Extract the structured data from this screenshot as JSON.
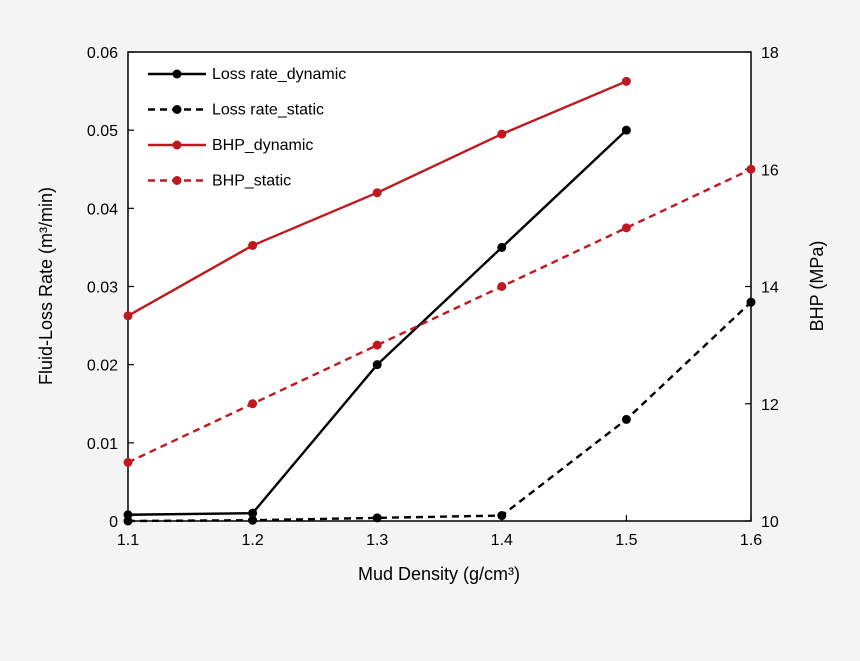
{
  "chart_data": {
    "type": "line",
    "x": [
      1.1,
      1.2,
      1.3,
      1.4,
      1.5,
      1.6
    ],
    "xlabel": "Mud Density (g/cm³)",
    "ylabel_left": "Fluid-Loss Rate (m³/min)",
    "ylabel_right": "BHP (MPa)",
    "xlim": [
      1.1,
      1.6
    ],
    "ylim_left": [
      0,
      0.06
    ],
    "ylim_right": [
      10,
      18
    ],
    "x_ticks": [
      "1.1",
      "1.2",
      "1.3",
      "1.4",
      "1.5",
      "1.6"
    ],
    "left_ticks": [
      "0",
      "0.01",
      "0.02",
      "0.03",
      "0.04",
      "0.05",
      "0.06"
    ],
    "right_ticks": [
      "10",
      "12",
      "14",
      "16",
      "18"
    ],
    "legend_position": "top-left",
    "series": [
      {
        "name": "Loss rate_dynamic",
        "axis": "left",
        "color": "#000000",
        "dashed": false,
        "x": [
          1.1,
          1.2,
          1.3,
          1.4,
          1.5
        ],
        "values": [
          0.0008,
          0.001,
          0.02,
          0.035,
          0.05
        ]
      },
      {
        "name": "Loss rate_static",
        "axis": "left",
        "color": "#000000",
        "dashed": true,
        "x": [
          1.1,
          1.2,
          1.3,
          1.4,
          1.5,
          1.6
        ],
        "values": [
          0,
          0.0001,
          0.0004,
          0.0007,
          0.013,
          0.028
        ]
      },
      {
        "name": "BHP_dynamic",
        "axis": "right",
        "color": "#c0181f",
        "dashed": false,
        "x": [
          1.1,
          1.2,
          1.3,
          1.4,
          1.5
        ],
        "values": [
          13.5,
          14.7,
          15.6,
          16.6,
          17.5
        ]
      },
      {
        "name": "BHP_static",
        "axis": "right",
        "color": "#c0181f",
        "dashed": true,
        "x": [
          1.1,
          1.2,
          1.3,
          1.4,
          1.5,
          1.6
        ],
        "values": [
          11.0,
          12.0,
          13.0,
          14.0,
          15.0,
          16.0
        ]
      }
    ]
  }
}
